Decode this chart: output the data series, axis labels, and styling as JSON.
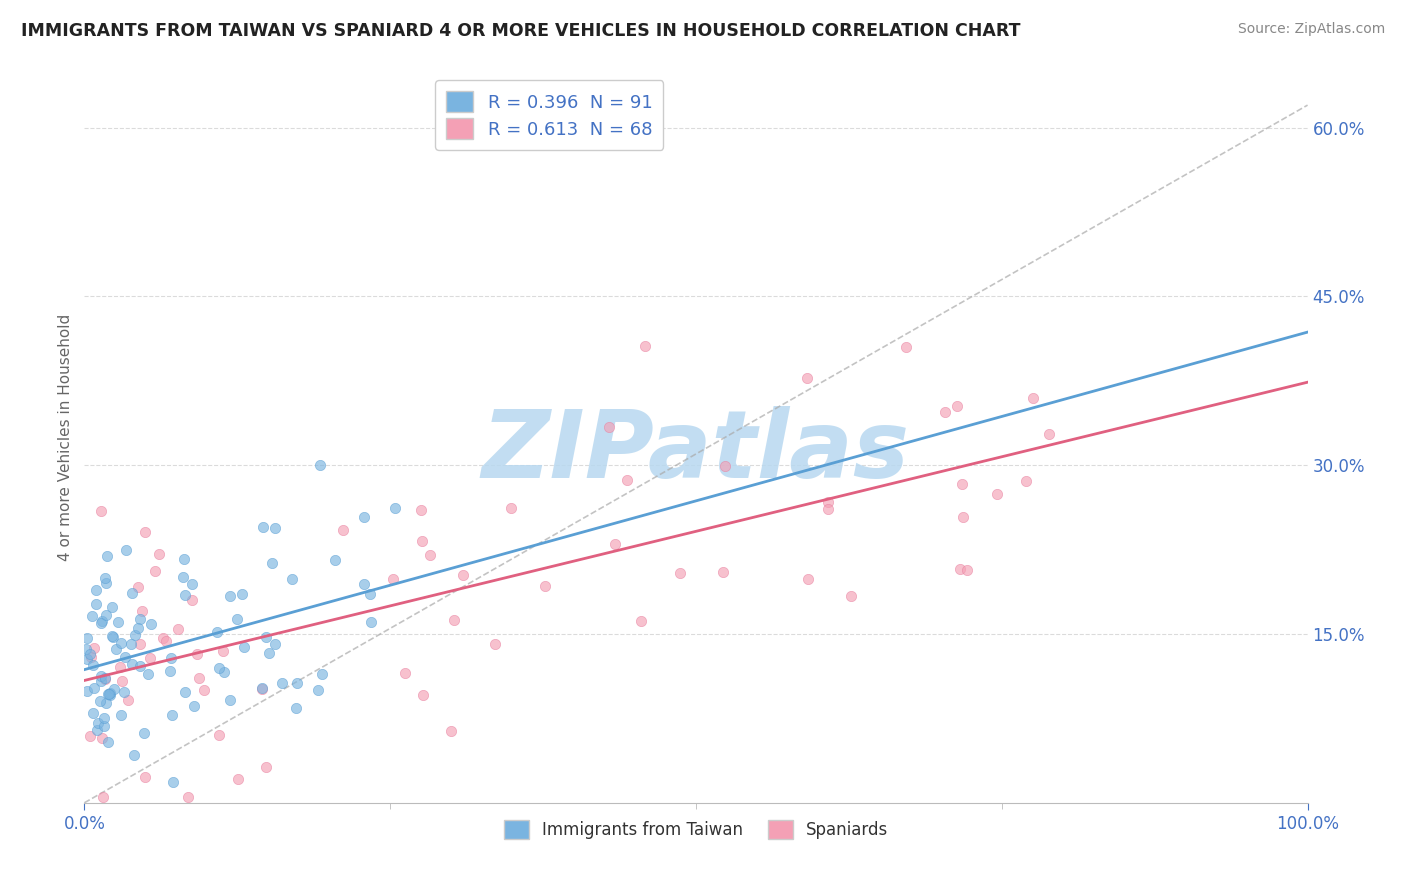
{
  "title": "IMMIGRANTS FROM TAIWAN VS SPANIARD 4 OR MORE VEHICLES IN HOUSEHOLD CORRELATION CHART",
  "source": "Source: ZipAtlas.com",
  "ylabel": "4 or more Vehicles in Household",
  "xlim": [
    0.0,
    100.0
  ],
  "ylim": [
    0.0,
    65.0
  ],
  "yticks": [
    0.0,
    15.0,
    30.0,
    45.0,
    60.0
  ],
  "xticks": [
    0.0,
    100.0
  ],
  "axis_label_color": "#4472c4",
  "background_color": "#ffffff",
  "watermark": "ZIPatlas",
  "watermark_color": "#b8d8f0",
  "series1_color": "#7ab4e0",
  "series2_color": "#f4a0b5",
  "series1_edge": "#5a9fd4",
  "series2_edge": "#e880a0",
  "series1_label": "Immigrants from Taiwan",
  "series2_label": "Spaniards",
  "series1_R": 0.396,
  "series1_N": 91,
  "series2_R": 0.613,
  "series2_N": 68,
  "line1_color": "#5a9fd4",
  "line2_color": "#e06080",
  "grid_color": "#cccccc",
  "legend_edge_color": "#cccccc"
}
